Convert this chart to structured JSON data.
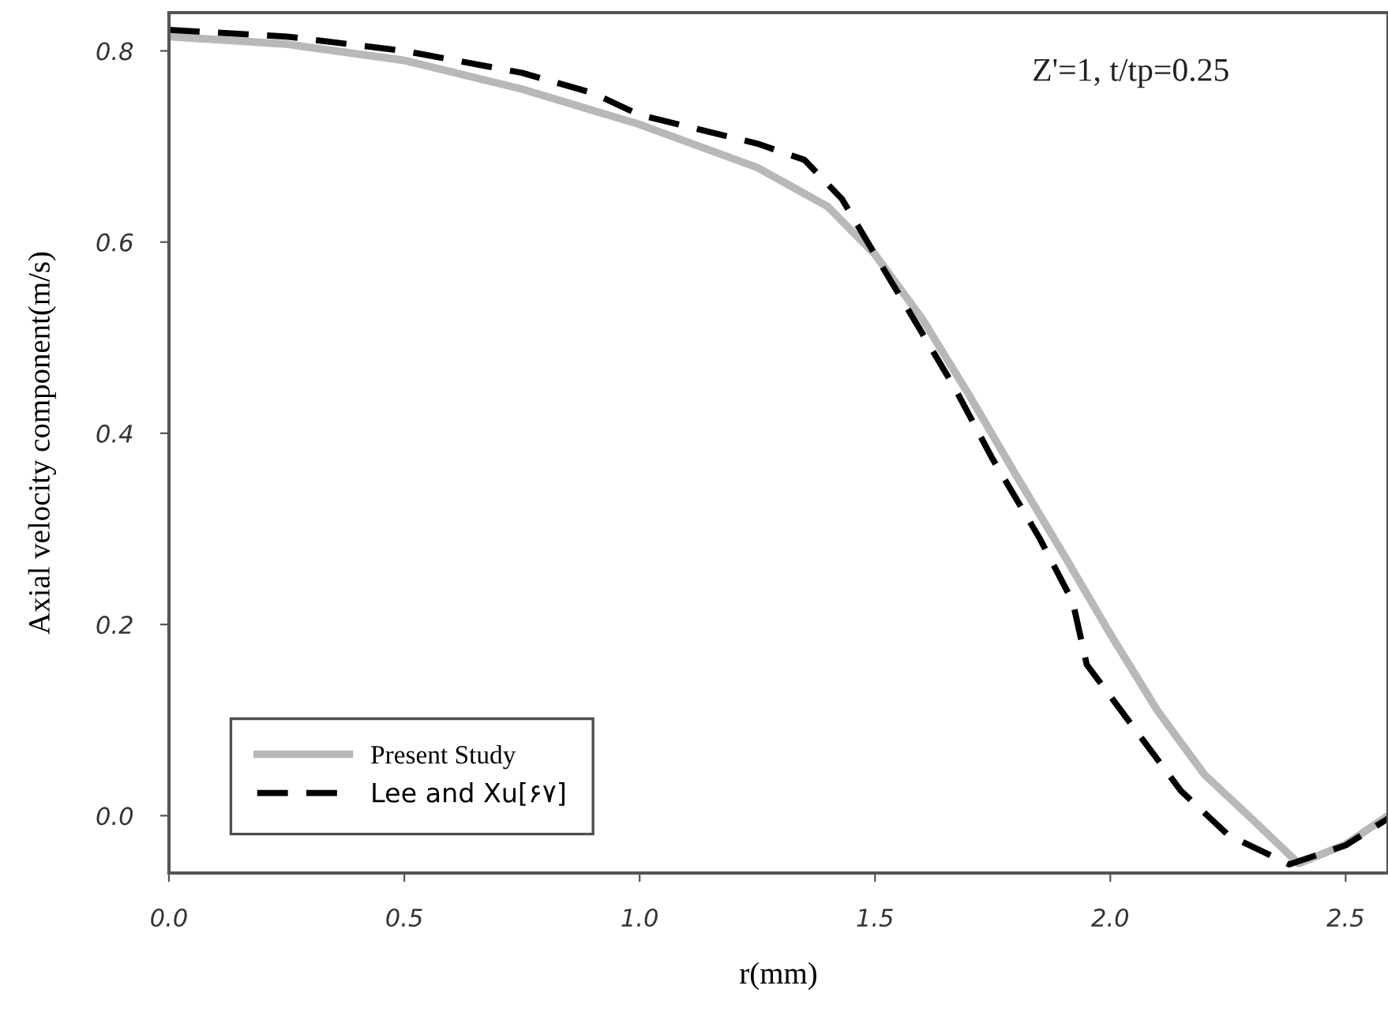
{
  "chart_data": {
    "type": "line",
    "xlabel": "r(mm)",
    "ylabel": "Axial velocity component(m/s)",
    "annotations": [
      "Z'=1, t/tp=0.25"
    ],
    "xlim": [
      0,
      2.59
    ],
    "ylim": [
      -0.06,
      0.84
    ],
    "xticks": [
      {
        "value": 0,
        "label": "0.0"
      },
      0.5,
      {
        "value": 1,
        "label": "1.0"
      },
      1.5,
      {
        "value": 2,
        "label": "2.0"
      },
      2.5
    ],
    "yticks": [
      {
        "value": 0,
        "label": "0.0"
      },
      0.2,
      0.4,
      0.6,
      0.8
    ],
    "grid": false,
    "legend": "bottom left",
    "series": [
      {
        "name": "Present Study",
        "color": "#b8b8b8",
        "line_style": "solid",
        "x": [
          0,
          0.25,
          0.5,
          0.75,
          1.0,
          1.25,
          1.4,
          1.5,
          1.6,
          1.7,
          1.8,
          1.9,
          2.0,
          2.1,
          2.2,
          2.3,
          2.4,
          2.5,
          2.59
        ],
        "values": [
          0.815,
          0.807,
          0.79,
          0.76,
          0.723,
          0.678,
          0.637,
          0.587,
          0.52,
          0.44,
          0.356,
          0.274,
          0.19,
          0.11,
          0.043,
          -0.003,
          -0.05,
          -0.03,
          0.0
        ]
      },
      {
        "name": "Lee and Xu[۶۷]",
        "color": "#000000",
        "line_style": "dashed",
        "x": [
          0,
          0.25,
          0.5,
          0.75,
          0.9,
          1.0,
          1.25,
          1.35,
          1.43,
          1.5,
          1.6,
          1.67,
          1.75,
          1.85,
          1.92,
          1.95,
          2.05,
          2.15,
          2.25,
          2.38,
          2.5,
          2.59
        ],
        "values": [
          0.822,
          0.815,
          0.8,
          0.777,
          0.756,
          0.733,
          0.703,
          0.686,
          0.645,
          0.587,
          0.505,
          0.447,
          0.373,
          0.29,
          0.224,
          0.158,
          0.092,
          0.026,
          -0.02,
          -0.051,
          -0.031,
          -0.003
        ]
      }
    ]
  }
}
